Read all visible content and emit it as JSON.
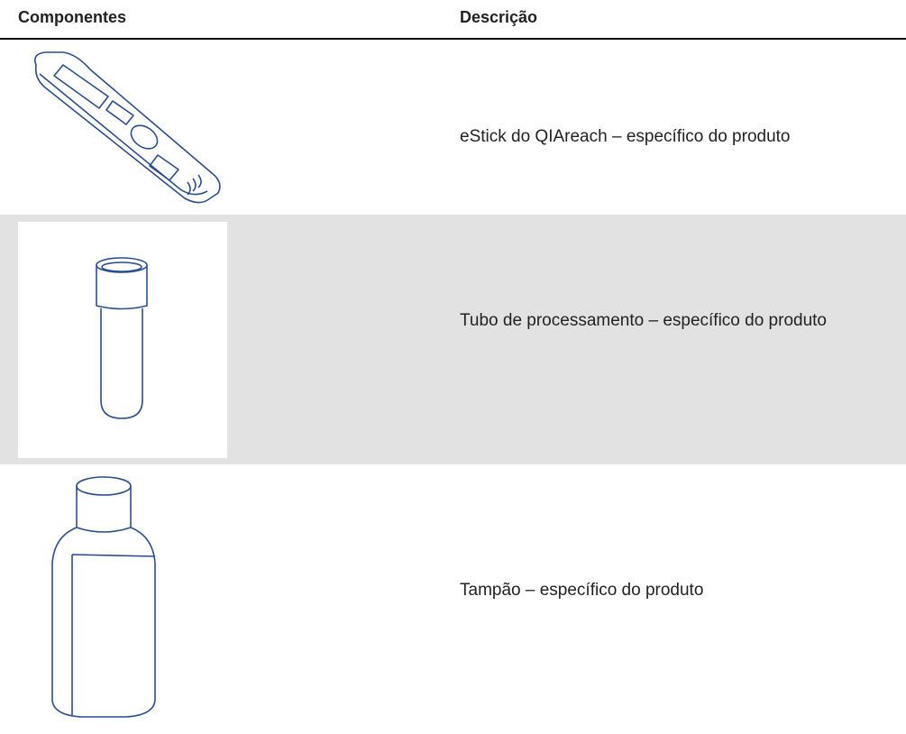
{
  "table": {
    "headers": [
      "Componentes",
      "Descrição"
    ],
    "rows": [
      {
        "description": "eStick do QIAreach – específico do produto"
      },
      {
        "description": "Tubo de processamento – específico do produto"
      },
      {
        "description": "Tampão – específico do produto"
      }
    ]
  }
}
